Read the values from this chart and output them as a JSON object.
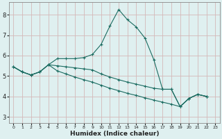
{
  "xlabel": "Humidex (Indice chaleur)",
  "background_color": "#dff0f0",
  "grid_color": "#d4b8b8",
  "line_color": "#1a6b60",
  "xlim": [
    -0.5,
    23.5
  ],
  "ylim": [
    2.7,
    8.6
  ],
  "xticks": [
    0,
    1,
    2,
    3,
    4,
    5,
    6,
    7,
    8,
    9,
    10,
    11,
    12,
    13,
    14,
    15,
    16,
    17,
    18,
    19,
    20,
    21,
    22,
    23
  ],
  "yticks": [
    3,
    4,
    5,
    6,
    7,
    8
  ],
  "line1_x": [
    0,
    1,
    2,
    3,
    4,
    5,
    6,
    7,
    8,
    9,
    10,
    11,
    12,
    13,
    14,
    15,
    16,
    17,
    18,
    19,
    20,
    21,
    22
  ],
  "line1_y": [
    5.45,
    5.2,
    5.05,
    5.2,
    5.55,
    5.85,
    5.85,
    5.85,
    5.9,
    6.05,
    6.55,
    7.45,
    8.25,
    7.75,
    7.4,
    6.85,
    5.8,
    4.35,
    4.35,
    3.5,
    3.9,
    4.1,
    4.0
  ],
  "line2_x": [
    0,
    1,
    2,
    3,
    4,
    5,
    6,
    7,
    8,
    9,
    10,
    11,
    12,
    13,
    14,
    15,
    16,
    17,
    18,
    19,
    20,
    21,
    22
  ],
  "line2_y": [
    5.45,
    5.2,
    5.05,
    5.2,
    5.55,
    5.5,
    5.45,
    5.4,
    5.35,
    5.3,
    5.1,
    4.95,
    4.82,
    4.7,
    4.6,
    4.5,
    4.4,
    4.35,
    4.35,
    3.5,
    3.9,
    4.1,
    4.0
  ],
  "line3_x": [
    0,
    1,
    2,
    3,
    4,
    5,
    6,
    7,
    8,
    9,
    10,
    11,
    12,
    13,
    14,
    15,
    16,
    17,
    18,
    19,
    20,
    21,
    22
  ],
  "line3_y": [
    5.45,
    5.2,
    5.05,
    5.2,
    5.55,
    5.25,
    5.1,
    4.95,
    4.82,
    4.7,
    4.55,
    4.4,
    4.28,
    4.15,
    4.05,
    3.93,
    3.82,
    3.72,
    3.62,
    3.5,
    3.9,
    4.1,
    4.0
  ]
}
